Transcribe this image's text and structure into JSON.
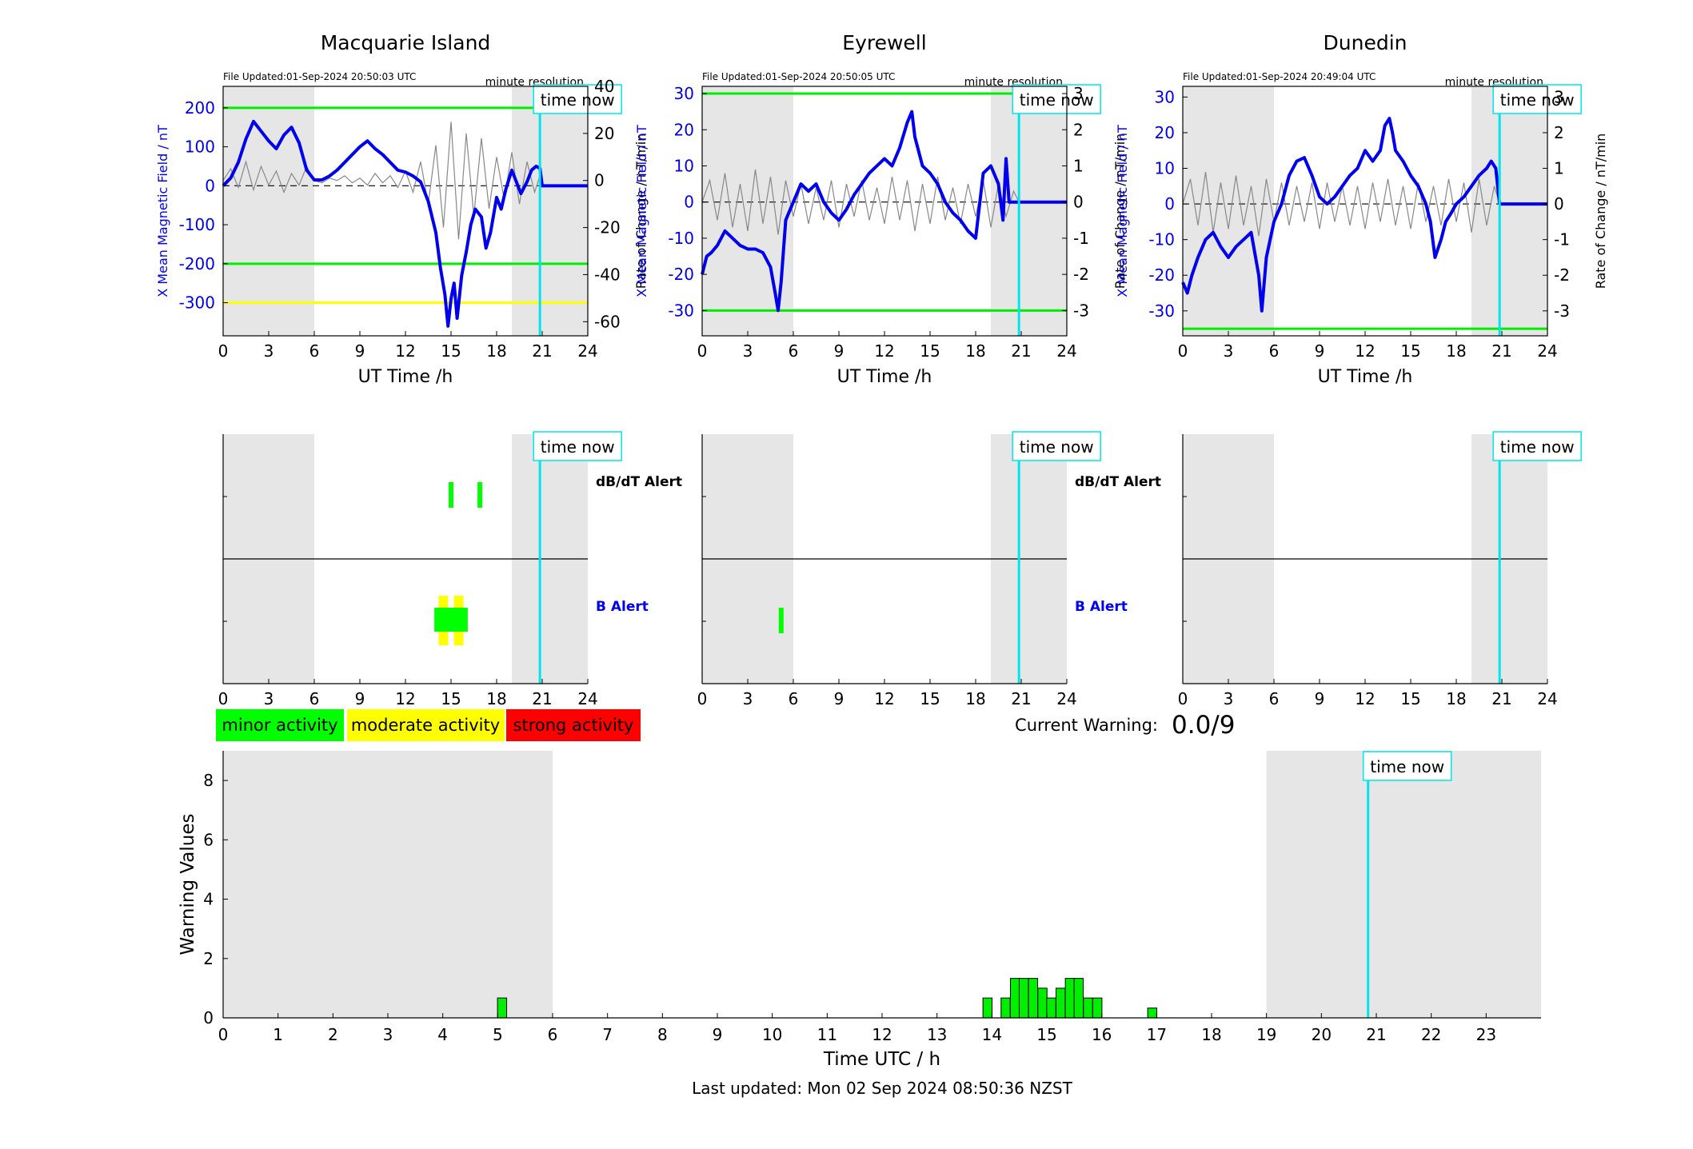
{
  "colors": {
    "x_field_line": "#0000ee",
    "rate_of_change_line": "#888888",
    "minor": "#00ff00",
    "moderate": "#ffff00",
    "strong": "#ff0000",
    "night_shade": "#e6e6e6",
    "time_now_line": "#00e5ee",
    "warning_bar": "#00ee00"
  },
  "stations": [
    {
      "title": "Macquarie Island",
      "file_updated": "File Updated:01-Sep-2024 20:50:03 UTC",
      "resolution": "minute resolution",
      "time_now_label": "time now",
      "xlabel": "UT Time /h",
      "ylabel_left": "X Mean Magnetic Field / nT",
      "ylabel_right": "Rate of Change / nT/min",
      "xticks": [
        "0",
        "3",
        "6",
        "9",
        "12",
        "15",
        "18",
        "21",
        "24"
      ],
      "yticks_left": [
        "200",
        "100",
        "0",
        "-100",
        "-200",
        "-300"
      ],
      "yticks_right": [
        "40",
        "20",
        "0",
        "-20",
        "-40",
        "-60"
      ],
      "alert_xticks": [
        "0",
        "3",
        "6",
        "9",
        "12",
        "15",
        "18",
        "21",
        "24"
      ]
    },
    {
      "title": "Eyrewell",
      "file_updated": "File Updated:01-Sep-2024 20:50:05 UTC",
      "resolution": "minute resolution",
      "time_now_label": "time now",
      "xlabel": "UT Time /h",
      "ylabel_left": "X Mean Magnetic Field / nT",
      "ylabel_right": "Rate of Change / nT/min",
      "xticks": [
        "0",
        "3",
        "6",
        "9",
        "12",
        "15",
        "18",
        "21",
        "24"
      ],
      "yticks_left": [
        "30",
        "20",
        "10",
        "0",
        "-10",
        "-20",
        "-30"
      ],
      "yticks_right": [
        "3",
        "2",
        "1",
        "0",
        "-1",
        "-2",
        "-3"
      ],
      "alert_xticks": [
        "0",
        "3",
        "6",
        "9",
        "12",
        "15",
        "18",
        "21",
        "24"
      ]
    },
    {
      "title": "Dunedin",
      "file_updated": "File Updated:01-Sep-2024 20:49:04 UTC",
      "resolution": "minute resolution",
      "time_now_label": "time now",
      "xlabel": "UT Time /h",
      "ylabel_left": "X Mean Magnetic Field / nT",
      "ylabel_right": "Rate of Change / nT/min",
      "xticks": [
        "0",
        "3",
        "6",
        "9",
        "12",
        "15",
        "18",
        "21",
        "24"
      ],
      "yticks_left": [
        "30",
        "20",
        "10",
        "0",
        "-10",
        "-20",
        "-30"
      ],
      "yticks_right": [
        "3",
        "2",
        "1",
        "0",
        "-1",
        "-2",
        "-3"
      ],
      "alert_xticks": [
        "0",
        "3",
        "6",
        "9",
        "12",
        "15",
        "18",
        "21",
        "24"
      ]
    }
  ],
  "alert_labels": {
    "dbdt": "dB/dT Alert",
    "b": "B Alert",
    "time_now": "time now"
  },
  "legend": {
    "minor": "minor activity",
    "moderate": "moderate activity",
    "strong": "strong activity"
  },
  "current_warning": {
    "label": "Current Warning:",
    "value": "0.0/9"
  },
  "footer": {
    "last_updated": "Last updated: Mon 02 Sep 2024 08:50:36 NZST"
  },
  "chart_data": [
    {
      "type": "line",
      "title": "Macquarie Island",
      "xlabel": "UT Time /h",
      "ylabel": "X Mean Magnetic Field / nT",
      "y2label": "Rate of Change / nT/min",
      "xlim": [
        0,
        24
      ],
      "ylim": [
        -385,
        255
      ],
      "y2lim": [
        -66,
        40
      ],
      "night_periods": [
        [
          0,
          6
        ],
        [
          19,
          24
        ]
      ],
      "time_now": 20.85,
      "threshold_lines": [
        {
          "y": 200,
          "color": "#00ee00"
        },
        {
          "y": -200,
          "color": "#00ee00"
        },
        {
          "y": -300,
          "color": "#ffff00"
        }
      ],
      "series": [
        {
          "axis": "left",
          "x": [
            0,
            0.5,
            1,
            1.5,
            2,
            2.5,
            3,
            3.5,
            4,
            4.5,
            5,
            5.5,
            6,
            6.5,
            7,
            7.5,
            8,
            8.5,
            9,
            9.5,
            10,
            10.5,
            11,
            11.5,
            12,
            12.5,
            13,
            13.5,
            14,
            14.3,
            14.6,
            14.8,
            15,
            15.2,
            15.4,
            15.7,
            16,
            16.3,
            16.6,
            17,
            17.3,
            17.6,
            18,
            18.3,
            18.6,
            19,
            19.3,
            19.6,
            20,
            20.3,
            20.6,
            20.85,
            21,
            22,
            23,
            24
          ],
          "y": [
            0,
            20,
            60,
            120,
            165,
            140,
            115,
            95,
            130,
            150,
            110,
            40,
            15,
            15,
            25,
            40,
            60,
            80,
            100,
            115,
            95,
            80,
            60,
            40,
            35,
            25,
            10,
            -40,
            -120,
            -210,
            -280,
            -360,
            -290,
            -250,
            -340,
            -230,
            -170,
            -100,
            -60,
            -80,
            -160,
            -120,
            -30,
            -60,
            -10,
            40,
            10,
            -20,
            10,
            40,
            50,
            45,
            0,
            0,
            0,
            0
          ]
        },
        {
          "axis": "right",
          "x": [
            0,
            0.5,
            1,
            1.5,
            2,
            2.5,
            3,
            3.5,
            4,
            4.5,
            5,
            5.5,
            6,
            6.5,
            7,
            7.5,
            8,
            8.5,
            9,
            9.5,
            10,
            10.5,
            11,
            11.5,
            12,
            12.5,
            13,
            13.5,
            14,
            14.5,
            15,
            15.5,
            16,
            16.5,
            17,
            17.5,
            18,
            18.5,
            19,
            19.5,
            20,
            20.5,
            20.85
          ],
          "y": [
            0,
            5,
            -3,
            8,
            -4,
            6,
            -2,
            4,
            -5,
            3,
            -2,
            6,
            0,
            -1,
            1,
            0,
            2,
            -1,
            1,
            -2,
            3,
            -1,
            2,
            -3,
            4,
            -5,
            8,
            -10,
            15,
            -20,
            25,
            -25,
            20,
            -15,
            18,
            -12,
            10,
            -8,
            12,
            -10,
            8,
            -5,
            2
          ]
        }
      ]
    },
    {
      "type": "line",
      "title": "Eyrewell",
      "xlabel": "UT Time /h",
      "ylabel": "X Mean Magnetic Field / nT",
      "y2label": "Rate of Change / nT/min",
      "xlim": [
        0,
        24
      ],
      "ylim": [
        -37,
        32
      ],
      "y2lim": [
        -3.7,
        3.2
      ],
      "night_periods": [
        [
          0,
          6
        ],
        [
          19,
          24
        ]
      ],
      "time_now": 20.85,
      "threshold_lines": [
        {
          "y": 30,
          "color": "#00ee00"
        },
        {
          "y": -30,
          "color": "#00ee00"
        }
      ],
      "series": [
        {
          "axis": "left",
          "x": [
            0,
            0.3,
            0.6,
            1,
            1.5,
            2,
            2.5,
            3,
            3.5,
            4,
            4.5,
            4.8,
            5,
            5.2,
            5.5,
            6,
            6.5,
            7,
            7.5,
            8,
            8.5,
            9,
            9.5,
            10,
            10.5,
            11,
            11.5,
            12,
            12.5,
            13,
            13.5,
            13.8,
            14,
            14.5,
            15,
            15.5,
            16,
            16.5,
            17,
            17.5,
            18,
            18.5,
            19,
            19.5,
            19.8,
            20,
            20.2,
            20.85,
            21,
            22,
            23,
            24
          ],
          "y": [
            -20,
            -15,
            -14,
            -12,
            -8,
            -10,
            -12,
            -13,
            -13,
            -14,
            -18,
            -25,
            -30,
            -22,
            -5,
            0,
            5,
            3,
            5,
            0,
            -3,
            -5,
            -2,
            2,
            5,
            8,
            10,
            12,
            10,
            15,
            22,
            25,
            18,
            10,
            8,
            5,
            0,
            -3,
            -5,
            -8,
            -10,
            8,
            10,
            5,
            -5,
            12,
            0,
            0,
            0,
            0,
            0,
            0
          ]
        },
        {
          "axis": "right",
          "x": [
            0,
            0.5,
            1,
            1.5,
            2,
            2.5,
            3,
            3.5,
            4,
            4.5,
            5,
            5.5,
            6,
            6.5,
            7,
            7.5,
            8,
            8.5,
            9,
            9.5,
            10,
            10.5,
            11,
            11.5,
            12,
            12.5,
            13,
            13.5,
            14,
            14.5,
            15,
            15.5,
            16,
            16.5,
            17,
            17.5,
            18,
            18.5,
            19,
            19.5,
            20,
            20.5,
            20.85
          ],
          "y": [
            0,
            0.6,
            -0.5,
            0.8,
            -0.7,
            0.5,
            -0.8,
            0.9,
            -0.6,
            0.7,
            -0.9,
            0.6,
            -0.4,
            0.5,
            -0.6,
            0.4,
            -0.5,
            0.6,
            -0.7,
            0.5,
            -0.4,
            0.6,
            -0.5,
            0.4,
            -0.6,
            0.7,
            -0.5,
            0.6,
            -0.8,
            0.5,
            -0.6,
            0.7,
            -0.5,
            0.4,
            -0.6,
            0.5,
            -0.4,
            0.6,
            -0.7,
            0.5,
            -0.4,
            0.3,
            0
          ]
        }
      ]
    },
    {
      "type": "line",
      "title": "Dunedin",
      "xlabel": "UT Time /h",
      "ylabel": "X Mean Magnetic Field / nT",
      "y2label": "Rate of Change / nT/min",
      "xlim": [
        0,
        24
      ],
      "ylim": [
        -37,
        33
      ],
      "y2lim": [
        -3.7,
        3.3
      ],
      "night_periods": [
        [
          0,
          6
        ],
        [
          19,
          24
        ]
      ],
      "time_now": 20.85,
      "threshold_lines": [
        {
          "y": -35,
          "color": "#00ee00"
        }
      ],
      "series": [
        {
          "axis": "left",
          "x": [
            0,
            0.3,
            0.6,
            1,
            1.5,
            2,
            2.5,
            3,
            3.5,
            4,
            4.5,
            5,
            5.2,
            5.5,
            6,
            6.5,
            7,
            7.5,
            8,
            8.5,
            9,
            9.5,
            10,
            10.5,
            11,
            11.5,
            12,
            12.5,
            13,
            13.3,
            13.6,
            13.8,
            14,
            14.5,
            15,
            15.5,
            16,
            16.3,
            16.6,
            17,
            17.3,
            17.6,
            18,
            18.5,
            19,
            19.5,
            20,
            20.3,
            20.6,
            20.85,
            21,
            22,
            23,
            24
          ],
          "y": [
            -22,
            -25,
            -20,
            -15,
            -10,
            -8,
            -12,
            -15,
            -12,
            -10,
            -8,
            -20,
            -30,
            -15,
            -5,
            0,
            8,
            12,
            13,
            8,
            2,
            0,
            2,
            5,
            8,
            10,
            15,
            12,
            15,
            22,
            24,
            20,
            15,
            12,
            8,
            5,
            0,
            -5,
            -15,
            -10,
            -5,
            -3,
            0,
            2,
            5,
            8,
            10,
            12,
            10,
            0,
            0,
            0,
            0,
            0
          ]
        },
        {
          "axis": "right",
          "x": [
            0,
            0.5,
            1,
            1.5,
            2,
            2.5,
            3,
            3.5,
            4,
            4.5,
            5,
            5.5,
            6,
            6.5,
            7,
            7.5,
            8,
            8.5,
            9,
            9.5,
            10,
            10.5,
            11,
            11.5,
            12,
            12.5,
            13,
            13.5,
            14,
            14.5,
            15,
            15.5,
            16,
            16.5,
            17,
            17.5,
            18,
            18.5,
            19,
            19.5,
            20,
            20.5,
            20.85
          ],
          "y": [
            0,
            0.7,
            -0.6,
            0.9,
            -0.8,
            0.6,
            -0.7,
            0.8,
            -0.6,
            0.5,
            -0.9,
            0.7,
            -0.5,
            0.6,
            -0.6,
            0.5,
            -0.5,
            0.6,
            -0.7,
            0.6,
            -0.5,
            0.5,
            -0.6,
            0.5,
            -0.7,
            0.6,
            -0.5,
            0.7,
            -0.6,
            0.5,
            -0.7,
            0.6,
            -0.5,
            0.5,
            -0.6,
            0.7,
            -0.5,
            0.6,
            -0.8,
            0.7,
            -0.6,
            0.5,
            0
          ]
        }
      ]
    },
    {
      "type": "bar",
      "title": "",
      "xlabel": "Time UTC / h",
      "ylabel": "Warning Values",
      "xlim": [
        0,
        24
      ],
      "ylim": [
        0,
        9
      ],
      "xticks": [
        "0",
        "1",
        "2",
        "3",
        "4",
        "5",
        "6",
        "7",
        "8",
        "9",
        "10",
        "11",
        "12",
        "13",
        "14",
        "15",
        "16",
        "17",
        "18",
        "19",
        "20",
        "21",
        "22",
        "23"
      ],
      "yticks": [
        "0",
        "2",
        "4",
        "6",
        "8"
      ],
      "night_periods": [
        [
          0,
          6
        ],
        [
          19,
          24
        ]
      ],
      "time_now": 20.85,
      "time_now_label": "time now",
      "bars": [
        {
          "x": 5.08,
          "value": 0.67
        },
        {
          "x": 13.92,
          "value": 0.67
        },
        {
          "x": 14.25,
          "value": 0.67
        },
        {
          "x": 14.42,
          "value": 1.33
        },
        {
          "x": 14.58,
          "value": 1.33
        },
        {
          "x": 14.75,
          "value": 1.33
        },
        {
          "x": 14.92,
          "value": 1.0
        },
        {
          "x": 15.08,
          "value": 0.67
        },
        {
          "x": 15.25,
          "value": 1.0
        },
        {
          "x": 15.42,
          "value": 1.33
        },
        {
          "x": 15.58,
          "value": 1.33
        },
        {
          "x": 15.75,
          "value": 0.67
        },
        {
          "x": 15.92,
          "value": 0.67
        },
        {
          "x": 16.92,
          "value": 0.33
        }
      ]
    }
  ],
  "alert_data": [
    {
      "station": "Macquarie Island",
      "dbdt": [
        {
          "x": 15.0,
          "level": "minor"
        },
        {
          "x": 16.9,
          "level": "minor"
        }
      ],
      "b": [
        {
          "x0": 13.9,
          "x1": 16.1,
          "level": "minor"
        },
        {
          "x": 14.5,
          "level": "moderate"
        },
        {
          "x": 15.5,
          "level": "moderate"
        }
      ]
    },
    {
      "station": "Eyrewell",
      "dbdt": [],
      "b": [
        {
          "x": 5.2,
          "level": "minor"
        }
      ]
    },
    {
      "station": "Dunedin",
      "dbdt": [],
      "b": []
    }
  ]
}
